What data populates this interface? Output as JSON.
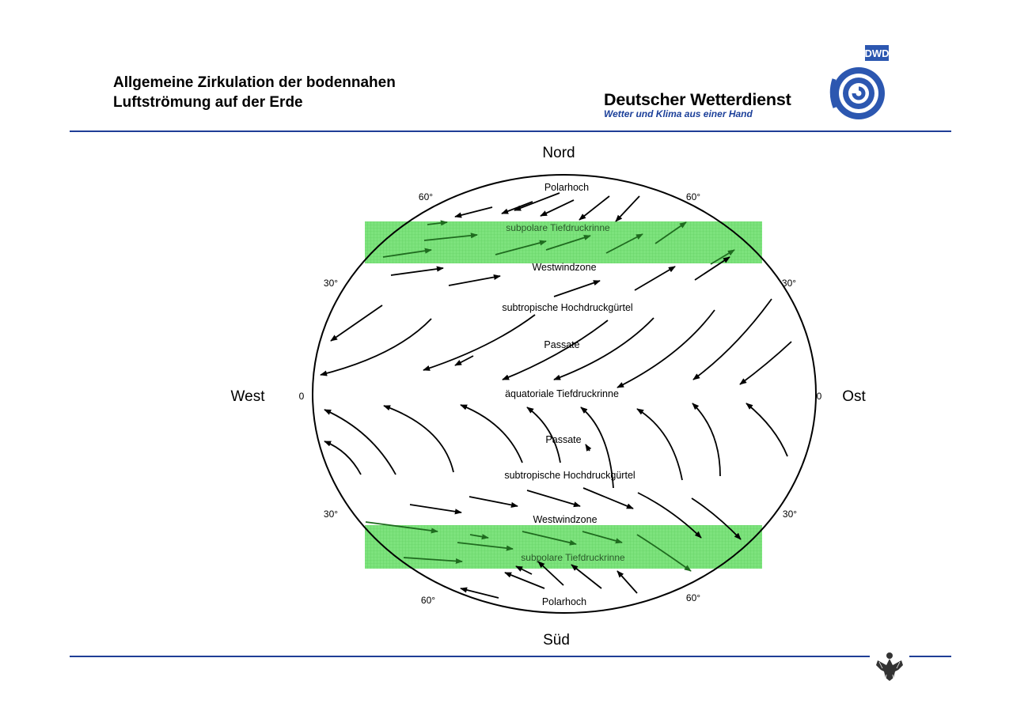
{
  "header": {
    "title_line1": "Allgemeine Zirkulation der bodennahen",
    "title_line2": "Luftströmung auf der Erde",
    "brand_name": "Deutscher Wetterdienst",
    "brand_tagline": "Wetter und Klima aus einer Hand",
    "logo_text": "DWD"
  },
  "diagram": {
    "north": "Nord",
    "south": "Süd",
    "west": "West",
    "east": "Ost",
    "lat_zero": "0",
    "lat_30": "30°",
    "lat_60": "60°",
    "zones": {
      "polar_high_n": "Polarhoch",
      "subpolar_low_n": "subpolare Tiefdruckrinne",
      "westerlies_n": "Westwindzone",
      "subtropical_high_n": "subtropische Hochdruckgürtel",
      "trades_n": "Passate",
      "equatorial_low": "äquatoriale Tiefdruckrinne",
      "trades_s": "Passate",
      "subtropical_high_s": "subtropische Hochdruckgürtel",
      "westerlies_s": "Westwindzone",
      "subpolar_low_s": "subpolare Tiefdruckrinne",
      "polar_high_s": "Polarhoch"
    },
    "colors": {
      "band": "#7de37d",
      "rule": "#1f3e96",
      "logo": "#2c57b0"
    }
  }
}
